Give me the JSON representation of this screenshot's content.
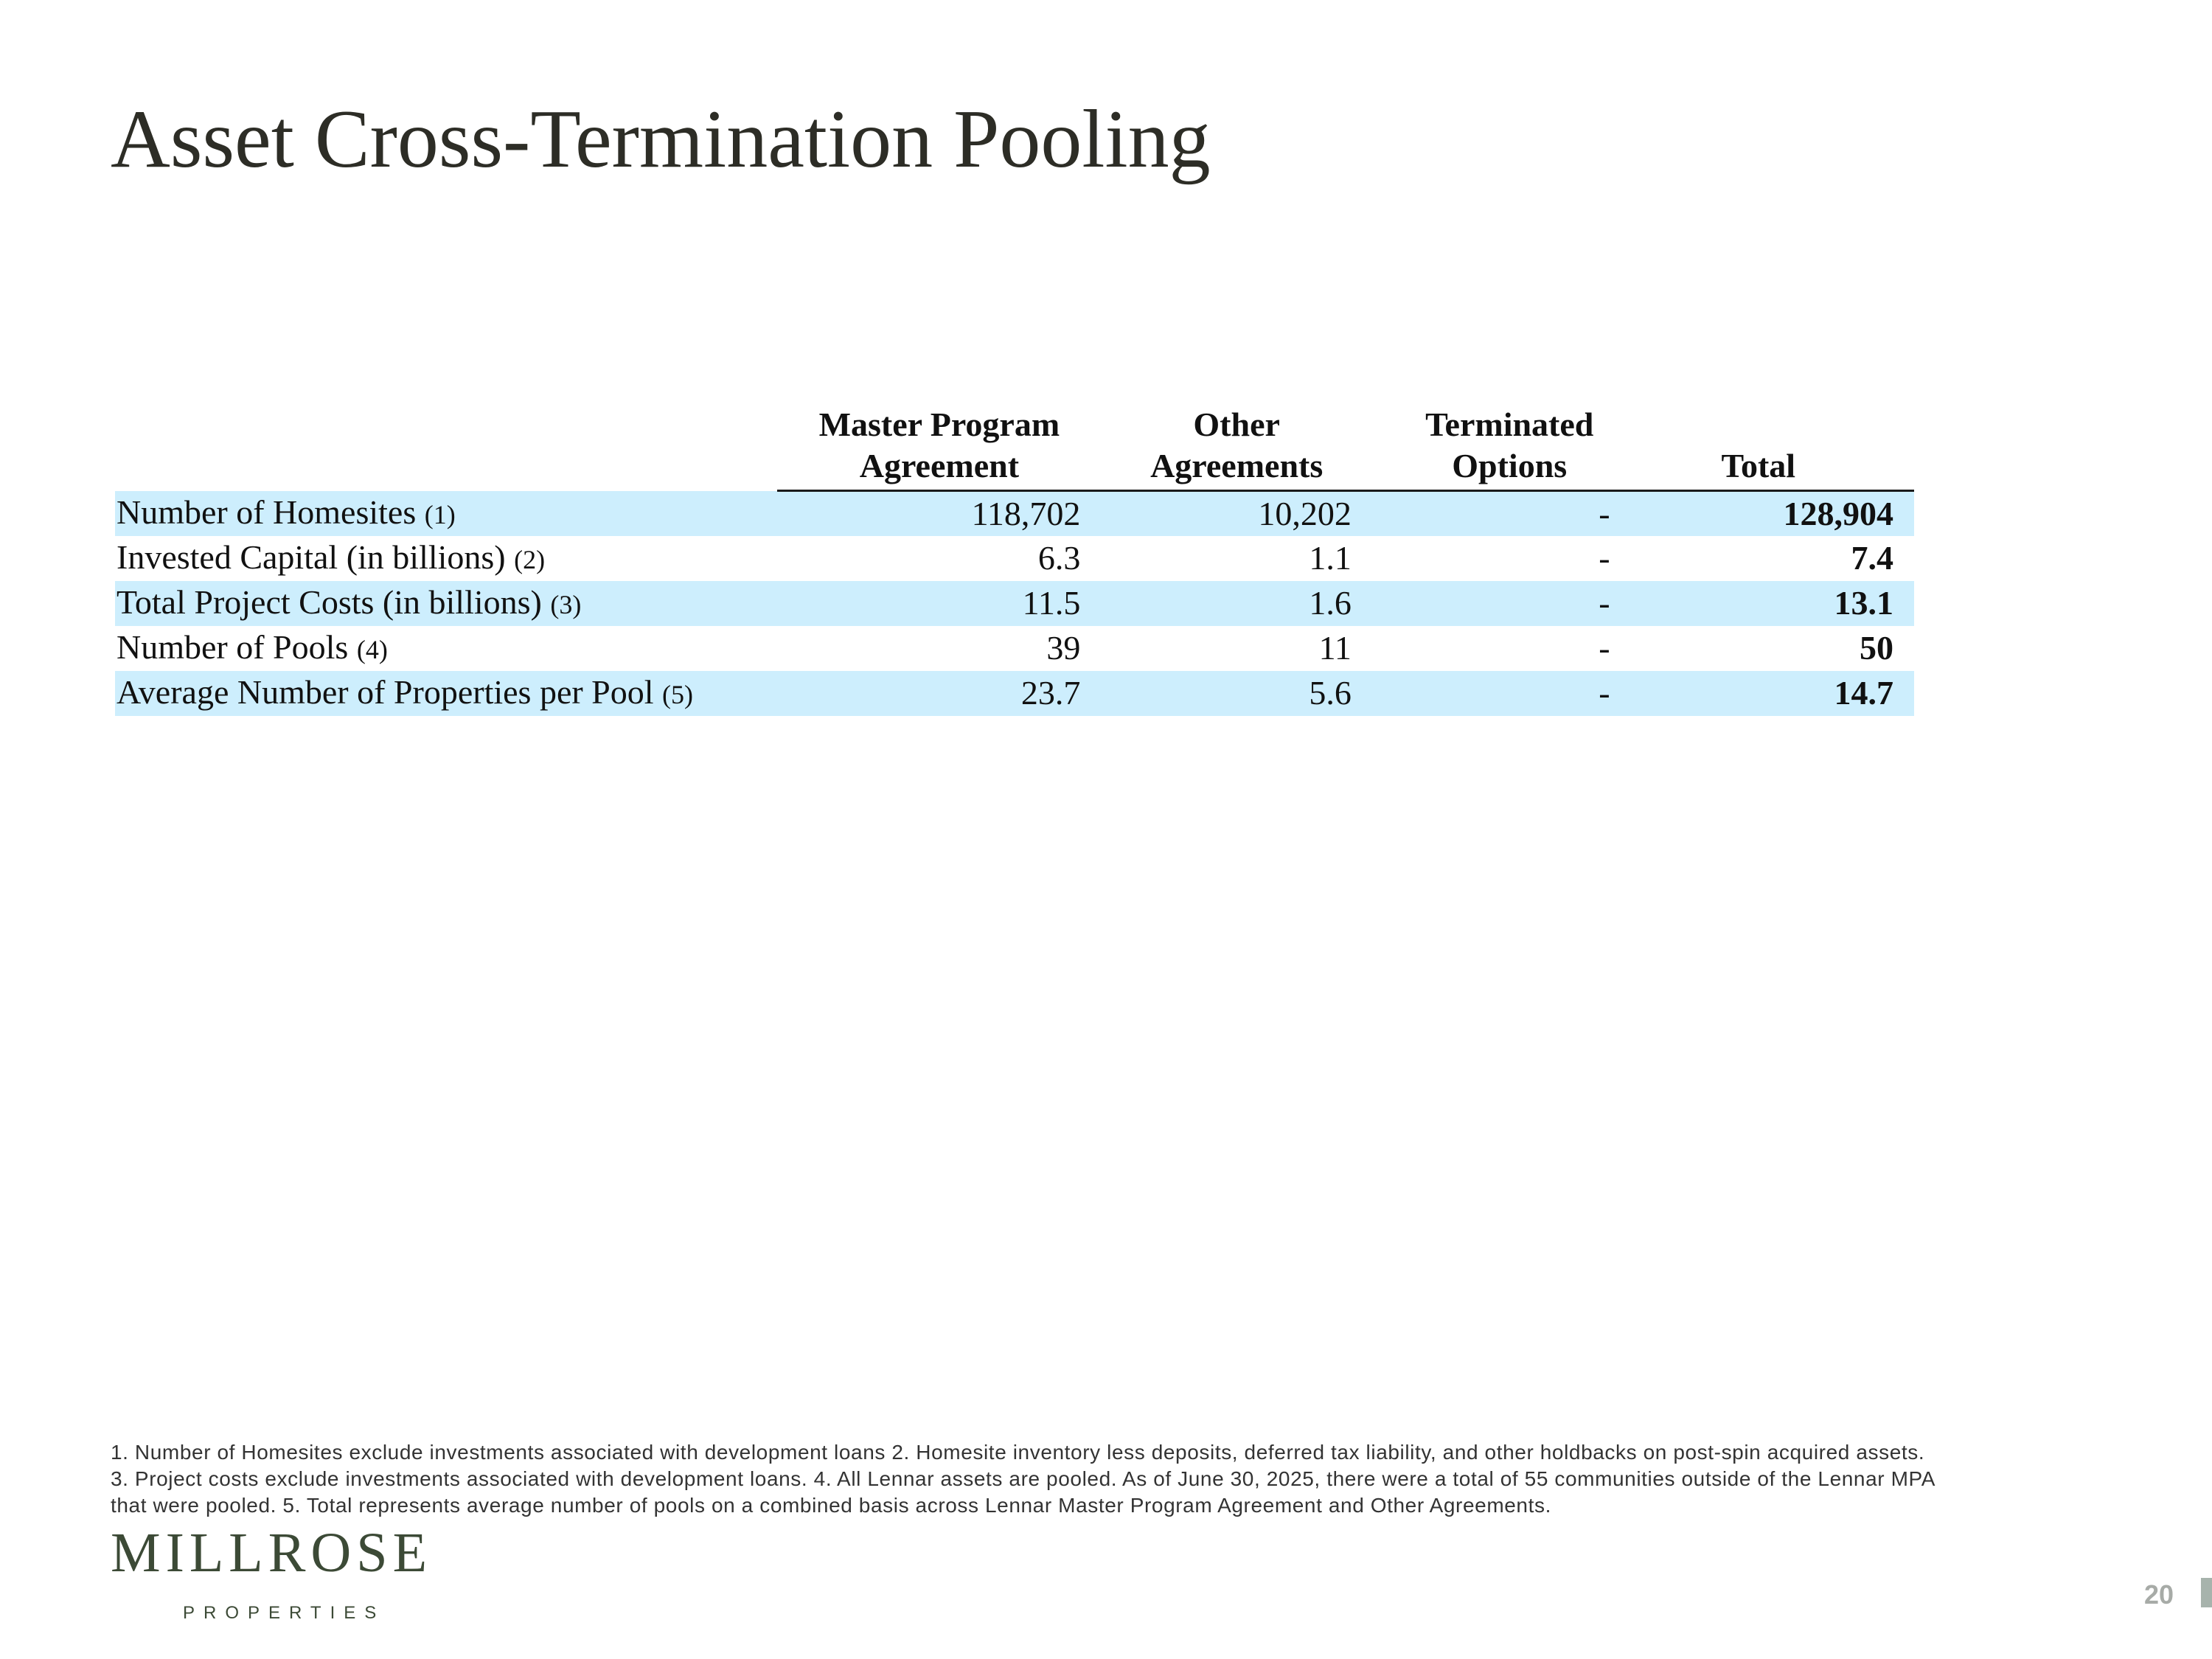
{
  "slide": {
    "title": "Asset Cross-Termination Pooling",
    "page_number": "20"
  },
  "table": {
    "headers": [
      "",
      "Master Program Agreement",
      "Other Agreements",
      "Terminated Options",
      "Total"
    ],
    "rows": [
      {
        "label": "Number of Homesites",
        "ref": "(1)",
        "mpa": "118,702",
        "other": "10,202",
        "terminated": "-",
        "total": "128,904",
        "shaded": true
      },
      {
        "label": "Invested Capital (in billions)",
        "ref": "(2)",
        "mpa": "6.3",
        "other": "1.1",
        "terminated": "-",
        "total": "7.4",
        "shaded": false
      },
      {
        "label": "Total Project Costs (in billions)",
        "ref": "(3)",
        "mpa": "11.5",
        "other": "1.6",
        "terminated": "-",
        "total": "13.1",
        "shaded": true
      },
      {
        "label": "Number of Pools",
        "ref": "(4)",
        "mpa": "39",
        "other": "11",
        "terminated": "-",
        "total": "50",
        "shaded": false
      },
      {
        "label": "Average Number of Properties per Pool",
        "ref": "(5)",
        "mpa": "23.7",
        "other": "5.6",
        "terminated": "-",
        "total": "14.7",
        "shaded": true
      }
    ]
  },
  "footnotes": [
    "1. Number of Homesites exclude investments associated with development loans  2. Homesite inventory less deposits, deferred tax liability, and other holdbacks on post-spin acquired assets.",
    "3. Project costs exclude investments associated with development loans. 4. All Lennar assets are pooled. As of June 30, 2025, there were a total of 55 communities outside of the Lennar MPA",
    "that were pooled. 5. Total represents average number of pools on a combined basis across Lennar Master Program Agreement and Other Agreements."
  ],
  "logo": {
    "name": "MILLROSE",
    "subtitle": "PROPERTIES"
  },
  "colors": {
    "row_shade": "#cdeefd",
    "title": "#2d2d26",
    "logo": "#3c4a36",
    "page_tab": "#a7b3ac"
  }
}
